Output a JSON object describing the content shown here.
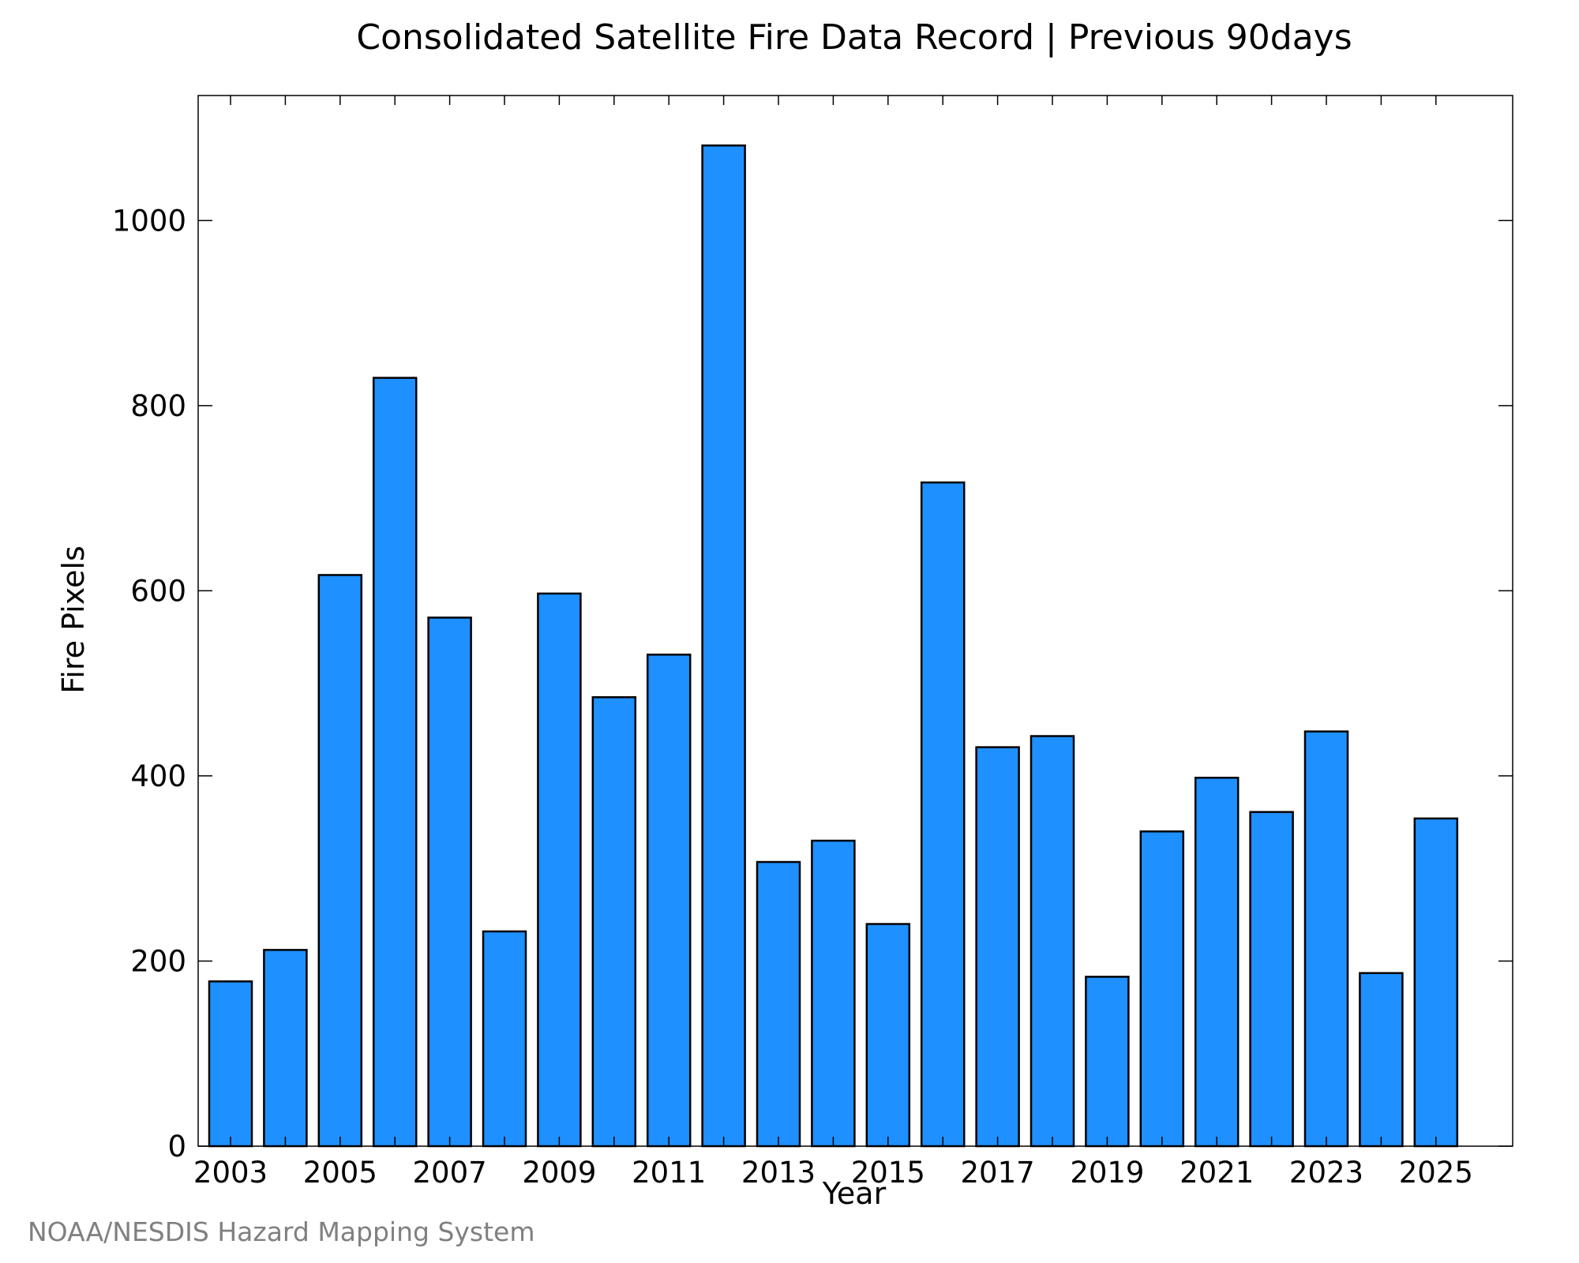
{
  "chart_data": {
    "type": "bar",
    "title": "Consolidated Satellite Fire Data Record | Previous 90days",
    "xlabel": "Year",
    "ylabel": "Fire Pixels",
    "categories": [
      "2003",
      "2004",
      "2005",
      "2006",
      "2007",
      "2008",
      "2009",
      "2010",
      "2011",
      "2012",
      "2013",
      "2014",
      "2015",
      "2016",
      "2017",
      "2018",
      "2019",
      "2020",
      "2021",
      "2022",
      "2023",
      "2024",
      "2025"
    ],
    "values": [
      178,
      212,
      617,
      830,
      571,
      232,
      597,
      485,
      531,
      1081,
      307,
      330,
      240,
      717,
      431,
      443,
      183,
      340,
      398,
      361,
      448,
      187,
      354
    ],
    "x_tick_labels": [
      "2003",
      "2005",
      "2007",
      "2009",
      "2011",
      "2013",
      "2015",
      "2017",
      "2019",
      "2021",
      "2023",
      "2025"
    ],
    "y_ticks": [
      0,
      200,
      400,
      600,
      800,
      1000
    ],
    "ylim": [
      0,
      1135
    ],
    "grid": false,
    "bar_color": "#1E90FF",
    "bar_edge_color": "#000000"
  },
  "credit": "NOAA/NESDIS Hazard Mapping System"
}
